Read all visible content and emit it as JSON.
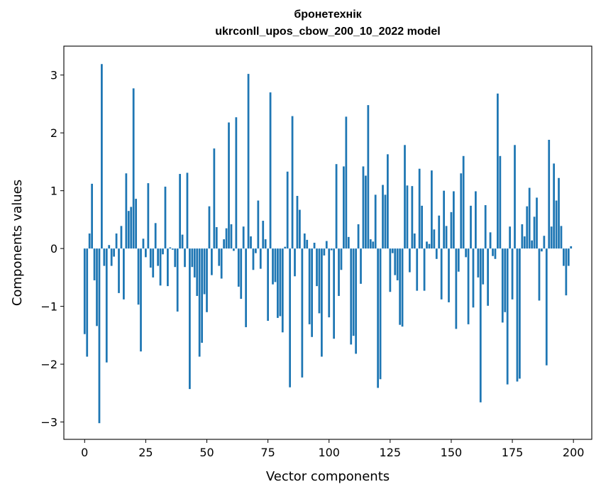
{
  "chart_data": {
    "type": "bar",
    "title": "бронетехнік",
    "subtitle": "ukrconll_upos_cbow_200_10_2022 model",
    "xlabel": "Vector components",
    "ylabel": "Components values",
    "xlim": [
      -8.5,
      207.5
    ],
    "ylim": [
      -3.3,
      3.5
    ],
    "xticks": [
      0,
      25,
      50,
      75,
      100,
      125,
      150,
      175,
      200
    ],
    "xtick_labels": [
      "0",
      "25",
      "50",
      "75",
      "100",
      "125",
      "150",
      "175",
      "200"
    ],
    "yticks": [
      -3,
      -2,
      -1,
      0,
      1,
      2,
      3
    ],
    "ytick_labels": [
      "−3",
      "−2",
      "−1",
      "0",
      "1",
      "2",
      "3"
    ],
    "grid": false,
    "bar_color": "#1f77b4",
    "x": [
      0,
      1,
      2,
      3,
      4,
      5,
      6,
      7,
      8,
      9,
      10,
      11,
      12,
      13,
      14,
      15,
      16,
      17,
      18,
      19,
      20,
      21,
      22,
      23,
      24,
      25,
      26,
      27,
      28,
      29,
      30,
      31,
      32,
      33,
      34,
      35,
      36,
      37,
      38,
      39,
      40,
      41,
      42,
      43,
      44,
      45,
      46,
      47,
      48,
      49,
      50,
      51,
      52,
      53,
      54,
      55,
      56,
      57,
      58,
      59,
      60,
      61,
      62,
      63,
      64,
      65,
      66,
      67,
      68,
      69,
      70,
      71,
      72,
      73,
      74,
      75,
      76,
      77,
      78,
      79,
      80,
      81,
      82,
      83,
      84,
      85,
      86,
      87,
      88,
      89,
      90,
      91,
      92,
      93,
      94,
      95,
      96,
      97,
      98,
      99,
      100,
      101,
      102,
      103,
      104,
      105,
      106,
      107,
      108,
      109,
      110,
      111,
      112,
      113,
      114,
      115,
      116,
      117,
      118,
      119,
      120,
      121,
      122,
      123,
      124,
      125,
      126,
      127,
      128,
      129,
      130,
      131,
      132,
      133,
      134,
      135,
      136,
      137,
      138,
      139,
      140,
      141,
      142,
      143,
      144,
      145,
      146,
      147,
      148,
      149,
      150,
      151,
      152,
      153,
      154,
      155,
      156,
      157,
      158,
      159,
      160,
      161,
      162,
      163,
      164,
      165,
      166,
      167,
      168,
      169,
      170,
      171,
      172,
      173,
      174,
      175,
      176,
      177,
      178,
      179,
      180,
      181,
      182,
      183,
      184,
      185,
      186,
      187,
      188,
      189,
      190,
      191,
      192,
      193,
      194,
      195,
      196,
      197,
      198,
      199
    ],
    "values": [
      -1.48,
      -1.87,
      0.26,
      1.12,
      -0.55,
      -1.34,
      -3.02,
      3.19,
      -0.3,
      -1.97,
      0.06,
      -0.3,
      -0.14,
      0.26,
      -0.77,
      0.39,
      -0.88,
      1.3,
      0.65,
      0.72,
      2.77,
      0.86,
      -0.97,
      -1.78,
      0.17,
      -0.15,
      1.13,
      -0.33,
      -0.5,
      0.44,
      -0.3,
      -0.64,
      -0.1,
      1.07,
      -0.65,
      0.02,
      -0.02,
      -0.32,
      -1.09,
      1.29,
      0.24,
      -0.32,
      1.31,
      -2.43,
      -0.32,
      -0.5,
      -0.82,
      -1.87,
      -1.63,
      -0.79,
      -1.1,
      0.73,
      -0.46,
      1.73,
      0.37,
      -0.3,
      -0.52,
      0.16,
      0.35,
      2.18,
      0.42,
      -0.04,
      2.27,
      -0.66,
      -0.87,
      0.38,
      -1.36,
      3.02,
      0.21,
      -0.37,
      -0.08,
      0.83,
      -0.35,
      0.48,
      0.16,
      -1.25,
      2.7,
      -0.62,
      -0.58,
      -1.2,
      -1.17,
      -1.45,
      0.03,
      1.33,
      -2.4,
      2.29,
      -0.48,
      0.91,
      0.67,
      -2.23,
      0.26,
      0.15,
      -1.31,
      -1.53,
      0.1,
      -0.65,
      -1.12,
      -1.87,
      -0.12,
      0.13,
      -1.19,
      -0.03,
      -1.56,
      1.46,
      -0.82,
      -0.37,
      1.42,
      2.28,
      0.2,
      -1.66,
      -1.51,
      -1.82,
      0.42,
      -0.61,
      1.42,
      1.26,
      2.48,
      0.16,
      0.12,
      0.93,
      -2.41,
      -2.26,
      1.1,
      0.93,
      1.63,
      -0.75,
      -0.08,
      -0.46,
      -0.55,
      -1.32,
      -1.35,
      1.79,
      1.09,
      -0.41,
      1.08,
      0.26,
      -0.73,
      1.38,
      0.74,
      -0.73,
      0.12,
      0.08,
      1.35,
      0.33,
      -0.18,
      0.57,
      -0.88,
      1.0,
      0.39,
      -0.93,
      0.63,
      0.99,
      -1.39,
      -0.4,
      1.3,
      1.6,
      -0.15,
      -1.31,
      0.74,
      -1.02,
      0.99,
      -0.5,
      -2.66,
      -0.62,
      0.75,
      -0.99,
      0.28,
      -0.13,
      -0.18,
      2.68,
      1.6,
      -1.28,
      -1.1,
      -2.35,
      0.38,
      -0.88,
      1.79,
      -2.3,
      -2.25,
      0.42,
      0.21,
      0.73,
      1.05,
      0.14,
      0.55,
      0.88,
      -0.9,
      -0.05,
      0.22,
      -2.02,
      1.88,
      0.38,
      1.47,
      0.83,
      1.22,
      0.39,
      -0.3,
      -0.81,
      -0.3,
      0.04
    ]
  }
}
